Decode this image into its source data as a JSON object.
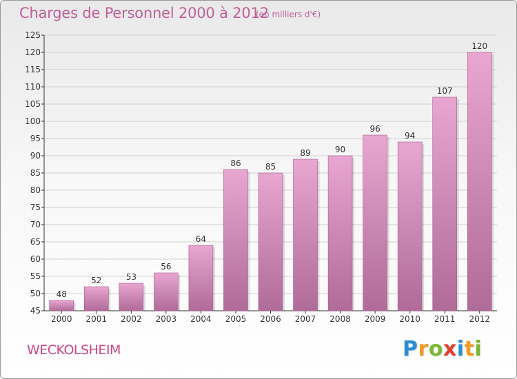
{
  "title": "Charges de Personnel 2000 à 2012",
  "subtitle": "(en milliers d'€)",
  "city": "WECKOLSHEIM",
  "brand": {
    "text": "Proxiti",
    "letters": [
      {
        "ch": "P",
        "color": "#2a8fd6"
      },
      {
        "ch": "r",
        "color": "#f29a1f"
      },
      {
        "ch": "o",
        "color": "#7ab833"
      },
      {
        "ch": "x",
        "color": "#e43d30"
      },
      {
        "ch": "i",
        "color": "#2a8fd6"
      },
      {
        "ch": "t",
        "color": "#f29a1f"
      },
      {
        "ch": "i",
        "color": "#7ab833"
      }
    ]
  },
  "colors": {
    "bar_top": "#e8a6d1",
    "bar_bottom": "#b06b98",
    "bar_edge": "#a55d8c",
    "title": "#c0609a",
    "grid": "#d0d0d0",
    "axis": "#333333"
  },
  "chart_data": {
    "type": "bar",
    "categories": [
      "2000",
      "2001",
      "2002",
      "2003",
      "2004",
      "2005",
      "2006",
      "2007",
      "2008",
      "2009",
      "2010",
      "2011",
      "2012"
    ],
    "values": [
      48,
      52,
      53,
      56,
      64,
      86,
      85,
      89,
      90,
      96,
      94,
      107,
      120
    ],
    "data_labels": [
      "48",
      "52",
      "53",
      "56",
      "64",
      "86",
      "85",
      "89",
      "90",
      "96",
      "94",
      "107",
      "120"
    ],
    "ylim": [
      45,
      125
    ],
    "yticks": [
      45,
      50,
      55,
      60,
      65,
      70,
      75,
      80,
      85,
      90,
      95,
      100,
      105,
      110,
      115,
      120,
      125
    ],
    "grid": true,
    "title": "Charges de Personnel 2000 à 2012",
    "xlabel": "",
    "ylabel": ""
  }
}
